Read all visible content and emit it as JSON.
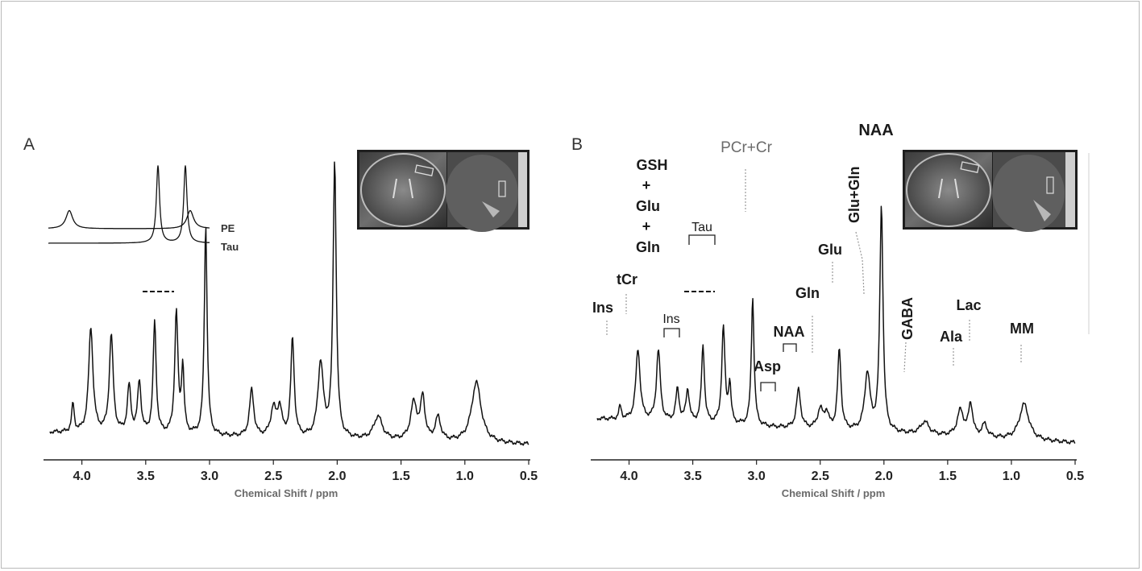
{
  "chart_data": [
    {
      "panel": "A",
      "type": "line",
      "xlabel": "Chemical Shift / ppm",
      "xlim": [
        4.25,
        0.5
      ],
      "x_reversed": true,
      "x_ticks": [
        "4.0",
        "3.5",
        "3.0",
        "2.5",
        "2.0",
        "1.5",
        "1.0",
        "0.5"
      ],
      "reference_spectra": [
        {
          "name": "PE",
          "peaks": [
            {
              "ppm": 3.97,
              "height": 0.25
            },
            {
              "ppm": 3.22,
              "height": 0.25
            }
          ]
        },
        {
          "name": "Tau",
          "peaks": [
            {
              "ppm": 3.42,
              "height": 1.0
            },
            {
              "ppm": 3.25,
              "height": 1.0
            }
          ]
        }
      ],
      "series": [
        {
          "peaks": [
            {
              "ppm": 4.07,
              "height": 0.12,
              "width": 0.012
            },
            {
              "ppm": 3.93,
              "height": 0.45,
              "width": 0.02
            },
            {
              "ppm": 3.77,
              "height": 0.42,
              "width": 0.018
            },
            {
              "ppm": 3.63,
              "height": 0.2,
              "width": 0.016
            },
            {
              "ppm": 3.55,
              "height": 0.22,
              "width": 0.016
            },
            {
              "ppm": 3.43,
              "height": 0.48,
              "width": 0.014
            },
            {
              "ppm": 3.26,
              "height": 0.52,
              "width": 0.015
            },
            {
              "ppm": 3.21,
              "height": 0.28,
              "width": 0.012
            },
            {
              "ppm": 3.03,
              "height": 0.9,
              "width": 0.013
            },
            {
              "ppm": 2.67,
              "height": 0.2,
              "width": 0.02
            },
            {
              "ppm": 2.5,
              "height": 0.12,
              "width": 0.025
            },
            {
              "ppm": 2.45,
              "height": 0.12,
              "width": 0.02
            },
            {
              "ppm": 2.35,
              "height": 0.42,
              "width": 0.016
            },
            {
              "ppm": 2.13,
              "height": 0.32,
              "width": 0.025
            },
            {
              "ppm": 2.02,
              "height": 1.18,
              "width": 0.015
            },
            {
              "ppm": 1.68,
              "height": 0.1,
              "width": 0.04
            },
            {
              "ppm": 1.4,
              "height": 0.16,
              "width": 0.03
            },
            {
              "ppm": 1.33,
              "height": 0.18,
              "width": 0.02
            },
            {
              "ppm": 1.21,
              "height": 0.1,
              "width": 0.025
            },
            {
              "ppm": 0.91,
              "height": 0.26,
              "width": 0.045
            }
          ]
        }
      ],
      "annotations": [
        {
          "type": "dashed-line",
          "ppm": [
            3.43,
            3.26
          ],
          "level": 0.86
        }
      ]
    },
    {
      "panel": "B",
      "type": "line",
      "xlabel": "Chemical Shift / ppm",
      "xlim": [
        4.25,
        0.5
      ],
      "x_reversed": true,
      "x_ticks": [
        "4.0",
        "3.5",
        "3.0",
        "2.5",
        "2.0",
        "1.5",
        "1.0",
        "0.5"
      ],
      "series": [
        {
          "peaks": [
            {
              "ppm": 4.07,
              "height": 0.1,
              "width": 0.012
            },
            {
              "ppm": 3.93,
              "height": 0.55,
              "width": 0.02
            },
            {
              "ppm": 3.77,
              "height": 0.55,
              "width": 0.018
            },
            {
              "ppm": 3.62,
              "height": 0.25,
              "width": 0.016
            },
            {
              "ppm": 3.54,
              "height": 0.25,
              "width": 0.016
            },
            {
              "ppm": 3.42,
              "height": 0.6,
              "width": 0.014
            },
            {
              "ppm": 3.26,
              "height": 0.75,
              "width": 0.015
            },
            {
              "ppm": 3.21,
              "height": 0.3,
              "width": 0.012
            },
            {
              "ppm": 3.03,
              "height": 1.0,
              "width": 0.013
            },
            {
              "ppm": 2.67,
              "height": 0.3,
              "width": 0.02
            },
            {
              "ppm": 2.5,
              "height": 0.15,
              "width": 0.025
            },
            {
              "ppm": 2.45,
              "height": 0.12,
              "width": 0.02
            },
            {
              "ppm": 2.35,
              "height": 0.62,
              "width": 0.016
            },
            {
              "ppm": 2.13,
              "height": 0.45,
              "width": 0.025
            },
            {
              "ppm": 2.02,
              "height": 1.75,
              "width": 0.015
            },
            {
              "ppm": 1.68,
              "height": 0.1,
              "width": 0.04
            },
            {
              "ppm": 1.4,
              "height": 0.2,
              "width": 0.03
            },
            {
              "ppm": 1.32,
              "height": 0.25,
              "width": 0.02
            },
            {
              "ppm": 1.21,
              "height": 0.1,
              "width": 0.025
            },
            {
              "ppm": 0.9,
              "height": 0.28,
              "width": 0.045
            }
          ]
        }
      ],
      "peak_labels": [
        "GSH",
        "+",
        "Glu",
        "+",
        "Gln",
        "tCr",
        "Ins",
        "Ins",
        "Tau",
        "PCr+Cr",
        "NAA",
        "Asp",
        "NAA",
        "Gln",
        "Glu",
        "Glu+Gln",
        "GABA",
        "Ala",
        "Lac",
        "MM"
      ]
    }
  ],
  "panelA": {
    "letter": "A",
    "legend": {
      "pe": "PE",
      "tau": "Tau"
    },
    "xlabel": "Chemical Shift / ppm",
    "ticks": [
      "4.0",
      "3.5",
      "3.0",
      "2.5",
      "2.0",
      "1.5",
      "1.0",
      "0.5"
    ]
  },
  "panelB": {
    "letter": "B",
    "xlabel": "Chemical Shift / ppm",
    "ticks": [
      "4.0",
      "3.5",
      "3.0",
      "2.5",
      "2.0",
      "1.5",
      "1.0",
      "0.5"
    ],
    "labels": {
      "gsh_1": "GSH",
      "plus_1": "+",
      "glu_1": "Glu",
      "plus_2": "+",
      "gln_1": "Gln",
      "tcr": "tCr",
      "ins_1": "Ins",
      "ins_2": "Ins",
      "tau": "Tau",
      "pcr_cr": "PCr+Cr",
      "naa_top": "NAA",
      "asp": "Asp",
      "naa_2": "NAA",
      "gln_2": "Gln",
      "glu_2": "Glu",
      "glu_gln": "Glu+Gln",
      "gaba": "GABA",
      "ala": "Ala",
      "lac": "Lac",
      "mm": "MM"
    }
  }
}
